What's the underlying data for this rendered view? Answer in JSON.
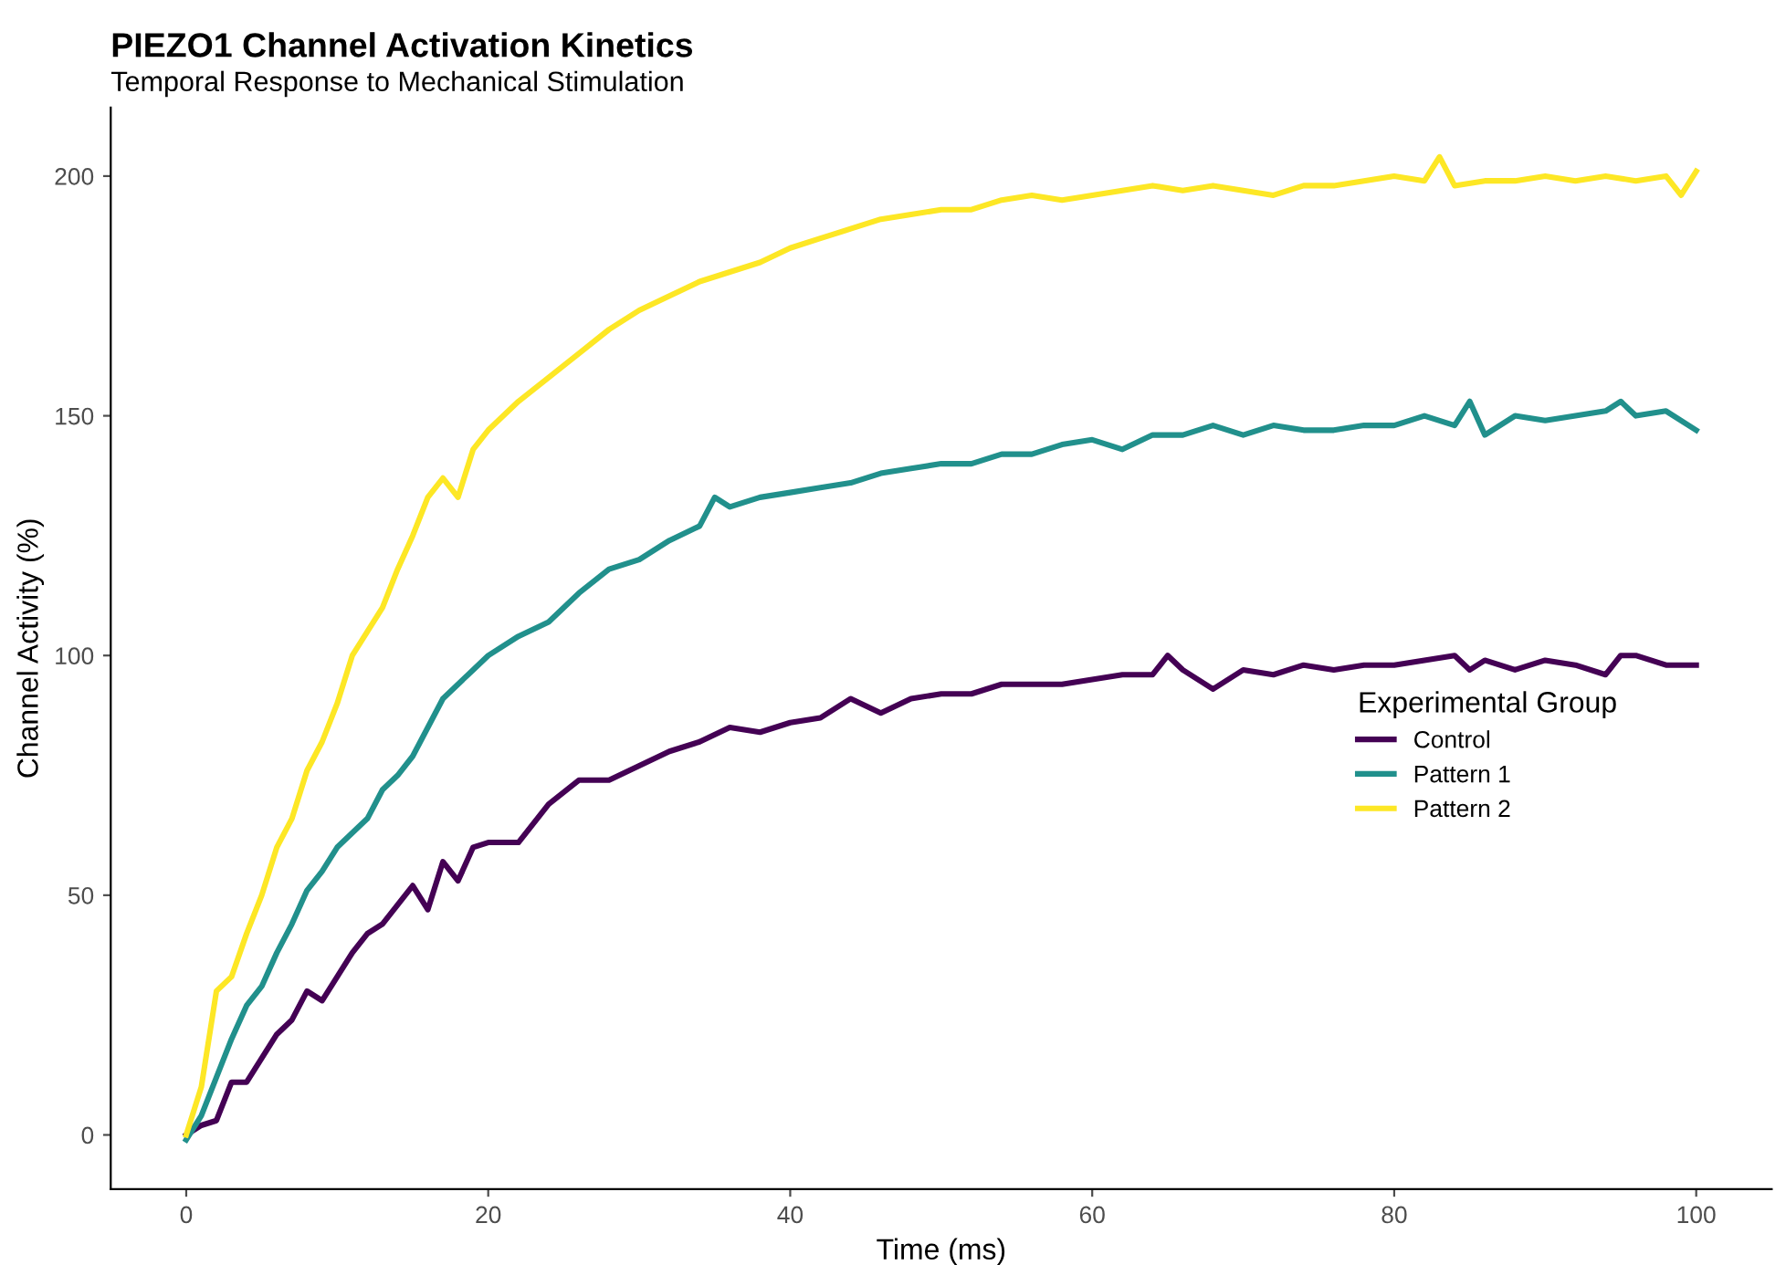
{
  "chart_data": {
    "type": "line",
    "title": "PIEZO1 Channel Activation Kinetics",
    "subtitle": "Temporal Response to Mechanical Stimulation",
    "xlabel": "Time (ms)",
    "ylabel": "Channel Activity (%)",
    "legend_title": "Experimental Group",
    "legend": "right",
    "grid": false,
    "line_style": "solid",
    "xlim": [
      -5,
      105
    ],
    "ylim": [
      -11.3,
      214.3
    ],
    "xticks": [
      0,
      20,
      40,
      60,
      80,
      100
    ],
    "yticks": [
      0,
      50,
      100,
      150,
      200
    ],
    "series": [
      {
        "name": "Control",
        "color": "#440154",
        "x": [
          0,
          1,
          2,
          3,
          4,
          5,
          6,
          7,
          8,
          9,
          10,
          11,
          12,
          13,
          14,
          15,
          16,
          17,
          18,
          19,
          20,
          22,
          24,
          26,
          28,
          30,
          32,
          34,
          36,
          38,
          40,
          42,
          44,
          46,
          48,
          50,
          52,
          54,
          56,
          58,
          60,
          62,
          64,
          65,
          66,
          68,
          70,
          72,
          74,
          76,
          78,
          80,
          82,
          84,
          85,
          86,
          88,
          90,
          92,
          94,
          95,
          96,
          98,
          100
        ],
        "values": [
          0,
          2,
          3,
          11,
          11,
          16,
          21,
          24,
          30,
          28,
          33,
          38,
          42,
          44,
          48,
          52,
          47,
          57,
          53,
          60,
          61,
          61,
          69,
          74,
          74,
          77,
          80,
          82,
          85,
          84,
          86,
          87,
          91,
          88,
          91,
          92,
          92,
          94,
          94,
          94,
          95,
          96,
          96,
          100,
          97,
          93,
          97,
          96,
          98,
          97,
          98,
          98,
          99,
          100,
          97,
          99,
          97,
          99,
          98,
          96,
          100,
          100,
          98,
          98
        ]
      },
      {
        "name": "Pattern 1",
        "color": "#21908c",
        "x": [
          0,
          1,
          2,
          3,
          4,
          5,
          6,
          7,
          8,
          9,
          10,
          11,
          12,
          13,
          14,
          15,
          16,
          17,
          18,
          19,
          20,
          22,
          24,
          26,
          28,
          30,
          32,
          34,
          35,
          36,
          38,
          40,
          42,
          44,
          46,
          48,
          50,
          52,
          54,
          56,
          58,
          60,
          62,
          64,
          66,
          68,
          70,
          72,
          74,
          76,
          78,
          80,
          82,
          84,
          85,
          86,
          88,
          90,
          92,
          94,
          95,
          96,
          98,
          100
        ],
        "values": [
          -1,
          4,
          12,
          20,
          27,
          31,
          38,
          44,
          51,
          55,
          60,
          63,
          66,
          72,
          75,
          79,
          85,
          91,
          94,
          97,
          100,
          104,
          107,
          113,
          118,
          120,
          124,
          127,
          133,
          131,
          133,
          134,
          135,
          136,
          138,
          139,
          140,
          140,
          142,
          142,
          144,
          145,
          143,
          146,
          146,
          148,
          146,
          148,
          147,
          147,
          148,
          148,
          150,
          148,
          153,
          146,
          150,
          149,
          150,
          151,
          153,
          150,
          151,
          147
        ]
      },
      {
        "name": "Pattern 2",
        "color": "#fde725",
        "x": [
          0,
          1,
          2,
          3,
          4,
          5,
          6,
          7,
          8,
          9,
          10,
          11,
          12,
          13,
          14,
          15,
          16,
          17,
          18,
          19,
          20,
          22,
          24,
          26,
          28,
          30,
          32,
          34,
          36,
          38,
          40,
          42,
          44,
          46,
          48,
          50,
          52,
          54,
          56,
          58,
          60,
          62,
          64,
          66,
          68,
          70,
          72,
          74,
          76,
          78,
          80,
          82,
          83,
          84,
          86,
          88,
          90,
          92,
          94,
          96,
          98,
          99,
          100
        ],
        "values": [
          0,
          10,
          30,
          33,
          42,
          50,
          60,
          66,
          76,
          82,
          90,
          100,
          105,
          110,
          118,
          125,
          133,
          137,
          133,
          143,
          147,
          153,
          158,
          163,
          168,
          172,
          175,
          178,
          180,
          182,
          185,
          187,
          189,
          191,
          192,
          193,
          193,
          195,
          196,
          195,
          196,
          197,
          198,
          197,
          198,
          197,
          196,
          198,
          198,
          199,
          200,
          199,
          204,
          198,
          199,
          199,
          200,
          199,
          200,
          199,
          200,
          196,
          201
        ]
      }
    ]
  }
}
